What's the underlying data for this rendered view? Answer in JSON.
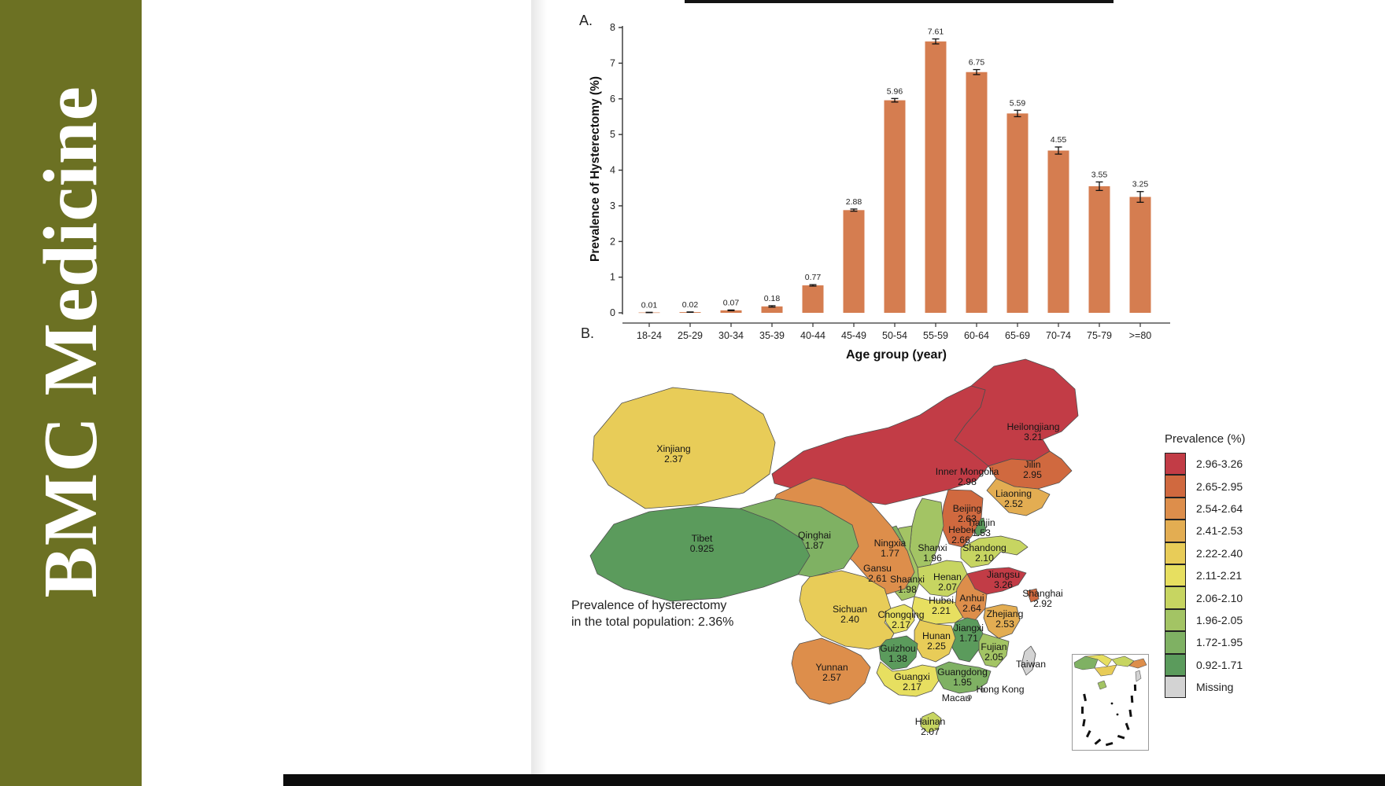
{
  "journal": {
    "name": "BMC Medicine",
    "brand_color": "#6c7123",
    "logo_text_color": "#ffffff"
  },
  "figure": {
    "panel_a": {
      "label": "A.",
      "chart_data": {
        "type": "bar",
        "title": "",
        "xlabel": "Age group (year)",
        "ylabel": "Prevalence of Hysterectomy (%)",
        "ylim": [
          0,
          8
        ],
        "yticks": [
          0,
          1,
          2,
          3,
          4,
          5,
          6,
          7,
          8
        ],
        "categories": [
          "18-24",
          "25-29",
          "30-34",
          "35-39",
          "40-44",
          "45-49",
          "50-54",
          "55-59",
          "60-64",
          "65-69",
          "70-74",
          "75-79",
          ">=80"
        ],
        "values": [
          0.01,
          0.02,
          0.07,
          0.18,
          0.77,
          2.88,
          5.96,
          7.61,
          6.75,
          5.59,
          4.55,
          3.55,
          3.25
        ],
        "value_labels": [
          "0.01",
          "0.02",
          "0.07",
          "0.18",
          "0.77",
          "2.88",
          "5.96",
          "7.61",
          "6.75",
          "5.59",
          "4.55",
          "3.55",
          "3.25"
        ],
        "errors": [
          0.005,
          0.005,
          0.01,
          0.02,
          0.02,
          0.03,
          0.05,
          0.07,
          0.07,
          0.09,
          0.1,
          0.12,
          0.15
        ],
        "bar_color": "#d57d50",
        "grid": false,
        "legend_position": "none"
      }
    },
    "panel_b": {
      "label": "B.",
      "annotation_line1": "Prevalence of hysterectomy",
      "annotation_line2": "in the total population: 2.36%",
      "legend": {
        "title": "Prevalence (%)",
        "bins": [
          {
            "label": "2.96-3.26",
            "color": "#c23c46"
          },
          {
            "label": "2.65-2.95",
            "color": "#d0693f"
          },
          {
            "label": "2.54-2.64",
            "color": "#dd8e4b"
          },
          {
            "label": "2.41-2.53",
            "color": "#e3ad52"
          },
          {
            "label": "2.22-2.40",
            "color": "#e8cc58"
          },
          {
            "label": "2.11-2.21",
            "color": "#e7df60"
          },
          {
            "label": "2.06-2.10",
            "color": "#c7d561"
          },
          {
            "label": "1.96-2.05",
            "color": "#a3c464"
          },
          {
            "label": "1.72-1.95",
            "color": "#7fb163"
          },
          {
            "label": "0.92-1.71",
            "color": "#5b9b5c"
          }
        ],
        "missing": {
          "label": "Missing",
          "color": "#d3d3d3"
        }
      },
      "chart_data": {
        "type": "choropleth",
        "title": "",
        "regions": [
          {
            "name": "Heilongjiang",
            "value": "3.21"
          },
          {
            "name": "Jilin",
            "value": "2.95"
          },
          {
            "name": "Inner Mongolia",
            "value": "2.98"
          },
          {
            "name": "Liaoning",
            "value": "2.52"
          },
          {
            "name": "Xinjiang",
            "value": "2.37"
          },
          {
            "name": "Beijing",
            "value": "2.63"
          },
          {
            "name": "Tianjin",
            "value": "1.53"
          },
          {
            "name": "Hebei",
            "value": "2.66"
          },
          {
            "name": "Shanxi",
            "value": "1.96"
          },
          {
            "name": "Shandong",
            "value": "2.10"
          },
          {
            "name": "Henan",
            "value": "2.07"
          },
          {
            "name": "Shaanxi",
            "value": "1.98"
          },
          {
            "name": "Ningxia",
            "value": "1.77"
          },
          {
            "name": "Gansu",
            "value": "2.61"
          },
          {
            "name": "Qinghai",
            "value": "1.87"
          },
          {
            "name": "Tibet",
            "value": "0.925"
          },
          {
            "name": "Sichuan",
            "value": "2.40"
          },
          {
            "name": "Chongqing",
            "value": "2.17"
          },
          {
            "name": "Hubei",
            "value": "2.21"
          },
          {
            "name": "Anhui",
            "value": "2.64"
          },
          {
            "name": "Jiangsu",
            "value": "3.26"
          },
          {
            "name": "Shanghai",
            "value": "2.92"
          },
          {
            "name": "Zhejiang",
            "value": "2.53"
          },
          {
            "name": "Jiangxi",
            "value": "1.71"
          },
          {
            "name": "Hunan",
            "value": "2.25"
          },
          {
            "name": "Guizhou",
            "value": "1.38"
          },
          {
            "name": "Yunnan",
            "value": "2.57"
          },
          {
            "name": "Guangxi",
            "value": "2.17"
          },
          {
            "name": "Guangdong",
            "value": "1.95"
          },
          {
            "name": "Fujian",
            "value": "2.05"
          },
          {
            "name": "Hainan",
            "value": "2.07"
          }
        ],
        "missing_regions": [
          "Taiwan",
          "Hong Kong",
          "Macau"
        ]
      }
    }
  }
}
